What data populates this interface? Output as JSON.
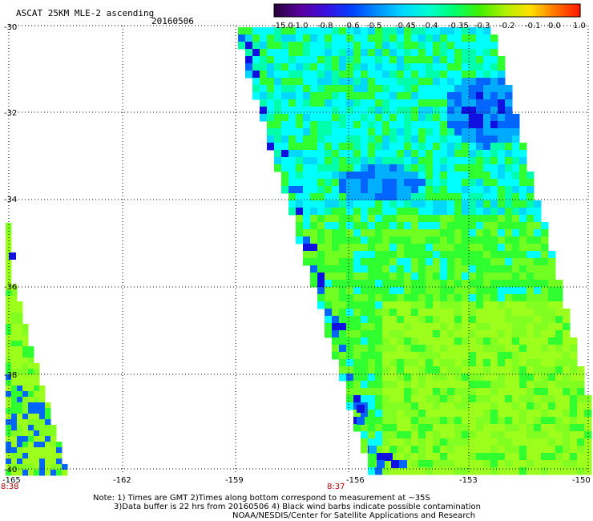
{
  "header": {
    "title": "ASCAT 25KM MLE-2 ascending",
    "date": "20160506"
  },
  "colorbar": {
    "labels": [
      "-15.0",
      "-1.0",
      "-0.8",
      "-0.6",
      "-0.5",
      "-0.45",
      "-0.4",
      "-0.35",
      "-0.3",
      "-0.2",
      "-0.1",
      "0.0",
      "1.0"
    ],
    "colors": [
      "#2a0040",
      "#5a00a0",
      "#3a10e0",
      "#0040ff",
      "#0090ff",
      "#00d8ff",
      "#00ffd0",
      "#00ff70",
      "#40f000",
      "#b0f000",
      "#ffe000",
      "#ff7000",
      "#ff1000"
    ]
  },
  "axes": {
    "lat_labels": [
      "-30",
      "-32",
      "-34",
      "-36",
      "-38",
      "-40"
    ],
    "lon_labels": [
      "-165",
      "-162",
      "-159",
      "-156",
      "-153",
      "-150"
    ]
  },
  "time_labels": [
    "8:38",
    "8:37"
  ],
  "notes": [
    "Note: 1) Times are GMT 2)Times along bottom correspond to measurement at ~35S",
    "3)Data buffer is 22 hrs from 20160506 4) Black wind barbs indicate possible contamination",
    "NOAA/NESDIS/Center for Satellite Applications and Research"
  ],
  "palette": {
    "green": "#30ff30",
    "lime": "#9cff1c",
    "cyan": "#00ffff",
    "blue": "#0066ff",
    "deepblue": "#1010e0"
  }
}
